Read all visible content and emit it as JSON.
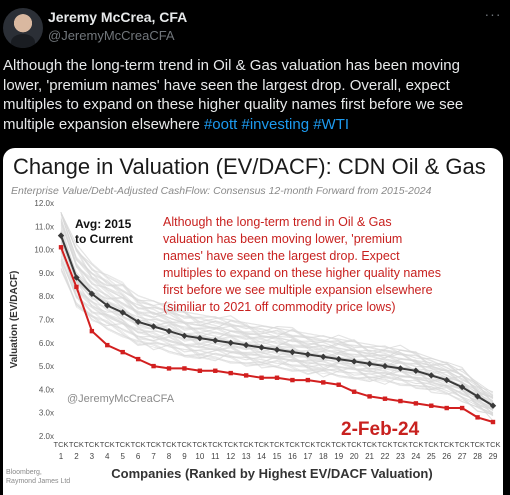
{
  "tweet": {
    "author_name": "Jeremy McCrea, CFA",
    "author_handle": "@JeremyMcCreaCFA",
    "more_label": "···",
    "text": "Although the long-term trend in Oil & Gas valuation has been moving lower, 'premium names' have seen the largest drop. Overall, expect multiples to expand on these higher quality names first before we see multiple expansion elsewhere",
    "hashtags": [
      "#oott",
      "#investing",
      "#WTI"
    ]
  },
  "colors": {
    "background": "#000000",
    "text": "#e7e9ea",
    "muted": "#71767b",
    "link": "#1d9bf0",
    "series_avg": "#3a3a3a",
    "series_current": "#d21f1f",
    "annotation": "#c8211f",
    "history_lines": "#d8d8d8"
  },
  "chart_data": {
    "type": "line",
    "title": "Change in Valuation (EV/DACF): CDN Oil & Gas",
    "subtitle": "Enterprise Value/Debt-Adjusted CashFlow: Consensus 12-month Forward from 2015-2024",
    "ylabel": "Valuation (EV/DACF)",
    "xlabel": "Companies (Ranked by Highest EV/DACF Valuation)",
    "ylim": [
      2,
      12
    ],
    "yticks": [
      "2.0x",
      "3.0x",
      "4.0x",
      "5.0x",
      "6.0x",
      "7.0x",
      "8.0x",
      "9.0x",
      "10.0x",
      "11.0x",
      "12.0x"
    ],
    "x": [
      1,
      2,
      3,
      4,
      5,
      6,
      7,
      8,
      9,
      10,
      11,
      12,
      13,
      14,
      15,
      16,
      17,
      18,
      19,
      20,
      21,
      22,
      23,
      24,
      25,
      26,
      27,
      28,
      29
    ],
    "xtick_prefix": "TCK",
    "series": [
      {
        "name": "Avg: 2015 to Current",
        "values": [
          10.6,
          8.8,
          8.1,
          7.6,
          7.3,
          6.9,
          6.7,
          6.5,
          6.3,
          6.2,
          6.1,
          6.0,
          5.9,
          5.8,
          5.7,
          5.6,
          5.5,
          5.4,
          5.3,
          5.2,
          5.1,
          5.0,
          4.9,
          4.8,
          4.6,
          4.4,
          4.1,
          3.7,
          3.3
        ]
      },
      {
        "name": "2-Feb-24",
        "values": [
          10.1,
          8.4,
          6.5,
          5.9,
          5.6,
          5.3,
          5.0,
          4.9,
          4.9,
          4.8,
          4.8,
          4.7,
          4.6,
          4.5,
          4.5,
          4.4,
          4.4,
          4.3,
          4.2,
          3.9,
          3.7,
          3.6,
          3.5,
          3.4,
          3.3,
          3.2,
          3.2,
          2.8,
          2.6
        ]
      }
    ],
    "annotations": {
      "avg_label": "Avg: 2015 to Current",
      "current_label": "2-Feb-24",
      "commentary": [
        "Although the long-term trend in Oil & Gas",
        "valuation has been moving lower, 'premium",
        "names' have seen the largest drop. Expect",
        "multiples to expand on these higher quality names",
        "first before we see multiple expansion elsewhere",
        "(similiar to 2021 off commodity price lows)"
      ],
      "watermark": "@JeremyMcCreaCFA",
      "source": "Bloomberg, Raymond James Ltd"
    },
    "grid": false,
    "legend": "none"
  }
}
